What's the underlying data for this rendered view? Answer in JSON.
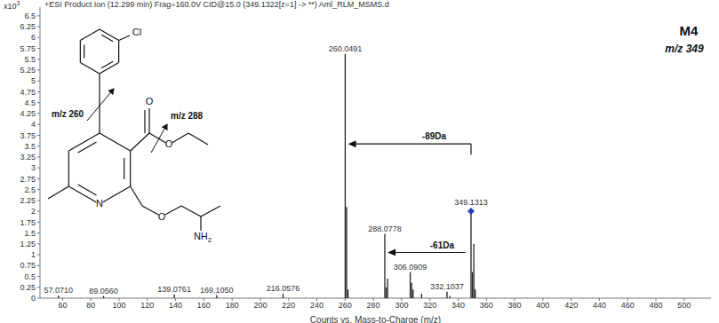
{
  "chart_data": {
    "type": "stick",
    "title": "+ESI Product Ion (12.299 min) Frag=160.0V CID@15.0 (349.1322[z=1] -> **) Aml_RLM_MSMS.d",
    "y_multiplier": {
      "base": "x10",
      "exponent": "3"
    },
    "x_label": "Counts vs. Mass-to-Charge (m/z)",
    "xlim": [
      44,
      519
    ],
    "xticks": [
      60,
      80,
      100,
      120,
      140,
      160,
      180,
      200,
      220,
      240,
      260,
      280,
      300,
      320,
      340,
      360,
      380,
      400,
      420,
      440,
      460,
      480,
      500
    ],
    "ylim": [
      0,
      6.7
    ],
    "yticks": [
      0,
      0.25,
      0.5,
      0.75,
      1,
      1.25,
      1.5,
      1.75,
      2,
      2.25,
      2.5,
      2.75,
      3,
      3.25,
      3.5,
      3.75,
      4,
      4.25,
      4.5,
      4.75,
      5,
      5.25,
      5.5,
      5.75,
      6,
      6.25,
      6.5
    ],
    "grid": false,
    "color": "#222222",
    "peaks": [
      {
        "mz": 57.071,
        "intensity": 0.06,
        "label": "57.0710"
      },
      {
        "mz": 89.056,
        "intensity": 0.05,
        "label": "89.0560"
      },
      {
        "mz": 139.0761,
        "intensity": 0.08,
        "label": "139.0761"
      },
      {
        "mz": 169.105,
        "intensity": 0.07,
        "label": "169.1050"
      },
      {
        "mz": 216.0576,
        "intensity": 0.1,
        "label": "216.0576"
      },
      {
        "mz": 260.0491,
        "intensity": 5.62,
        "label": "260.0491"
      },
      {
        "mz": 261.05,
        "intensity": 2.1
      },
      {
        "mz": 262.05,
        "intensity": 0.2
      },
      {
        "mz": 288.0778,
        "intensity": 1.48,
        "label": "288.0778"
      },
      {
        "mz": 289.08,
        "intensity": 0.25
      },
      {
        "mz": 290.07,
        "intensity": 0.45
      },
      {
        "mz": 306.0909,
        "intensity": 0.6,
        "label": "306.0909"
      },
      {
        "mz": 307.09,
        "intensity": 0.35
      },
      {
        "mz": 308.09,
        "intensity": 0.2
      },
      {
        "mz": 314.1,
        "intensity": 0.1
      },
      {
        "mz": 332.1037,
        "intensity": 0.15,
        "label": "332.1037"
      },
      {
        "mz": 334.1,
        "intensity": 0.05
      },
      {
        "mz": 349.1313,
        "intensity": 2.0,
        "label": "349.1313"
      },
      {
        "mz": 350.13,
        "intensity": 0.6
      },
      {
        "mz": 351.13,
        "intensity": 1.25
      },
      {
        "mz": 352.13,
        "intensity": 0.2
      }
    ],
    "precursor": {
      "mz": 349.1313,
      "marker": "diamond",
      "color": "#1f3fbf"
    },
    "heading": "M4",
    "subheading": "m/z 349",
    "arrows": [
      {
        "text": "-89Da",
        "from": 349.1313,
        "to": 260.0491
      },
      {
        "text": "-61Da",
        "from": 349.1313,
        "to": 288.0778
      }
    ],
    "structure": {
      "atoms": [
        "Cl",
        "O",
        "O",
        "N",
        "O",
        "NH2"
      ],
      "fragments": [
        "m/z 260",
        "m/z 288"
      ]
    }
  }
}
